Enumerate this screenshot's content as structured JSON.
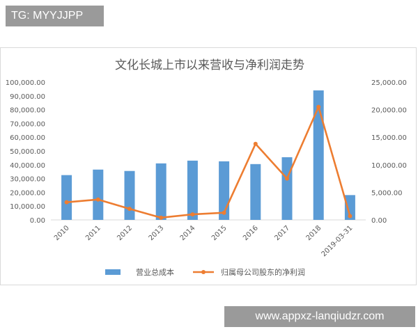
{
  "tag": "TG: MYYJJPP",
  "watermark": "www.appxz-lanqiudzr.com",
  "chart_data": {
    "type": "bar",
    "title": "文化长城上市以来营收与净利润走势",
    "categories": [
      "2010",
      "2011",
      "2012",
      "2013",
      "2014",
      "2015",
      "2016",
      "2017",
      "2018",
      "2019-03-31"
    ],
    "y_left": {
      "range": [
        0,
        100000
      ],
      "ticks": [
        "0.00",
        "10,000.00",
        "20,000.00",
        "30,000.00",
        "40,000.00",
        "50,000.00",
        "60,000.00",
        "70,000.00",
        "80,000.00",
        "90,000.00",
        "100,000.00"
      ],
      "tick_values": [
        0,
        10000,
        20000,
        30000,
        40000,
        50000,
        60000,
        70000,
        80000,
        90000,
        100000
      ]
    },
    "y_right": {
      "range": [
        0,
        25000
      ],
      "ticks": [
        "0.00",
        "5,000.00",
        "10,000.00",
        "15,000.00",
        "20,000.00",
        "25,000.00"
      ],
      "tick_values": [
        0,
        5000,
        10000,
        15000,
        20000,
        25000
      ]
    },
    "series": [
      {
        "name": "营业总成本",
        "type": "bar",
        "axis": "left",
        "color": "#5b9bd5",
        "values": [
          32500,
          36500,
          35500,
          41000,
          43000,
          42500,
          40500,
          45500,
          94000,
          18000
        ]
      },
      {
        "name": "归属母公司股东的净利润",
        "type": "line",
        "axis": "right",
        "color": "#ed7d31",
        "values": [
          3200,
          3700,
          2000,
          400,
          1000,
          1300,
          13800,
          7500,
          20500,
          700
        ]
      }
    ],
    "grid": false,
    "legend": "bottom"
  }
}
